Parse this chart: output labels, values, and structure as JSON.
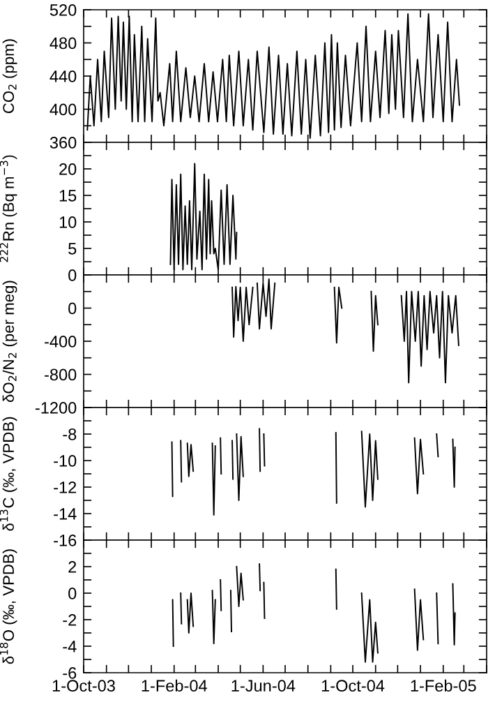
{
  "chart_data": [
    {
      "type": "line",
      "ylabel": "CO$_{2}$ (ppm)",
      "line_style": "solid",
      "tick_labels": "y",
      "xlim": [
        "2003-10-01",
        "2005-04-01"
      ],
      "xticks": [
        {
          "value": "2003-10-01",
          "label": null
        },
        {
          "value": "2003-11-01",
          "label": null
        },
        {
          "value": "2003-12-01",
          "label": null
        },
        {
          "value": "2004-01-01",
          "label": null
        },
        {
          "value": "2004-02-01",
          "label": null
        },
        {
          "value": "2004-03-01",
          "label": null
        },
        {
          "value": "2004-04-01",
          "label": null
        },
        {
          "value": "2004-05-01",
          "label": null
        },
        {
          "value": "2004-06-01",
          "label": null
        },
        {
          "value": "2004-07-01",
          "label": null
        },
        {
          "value": "2004-08-01",
          "label": null
        },
        {
          "value": "2004-09-01",
          "label": null
        },
        {
          "value": "2004-10-01",
          "label": null
        },
        {
          "value": "2004-11-01",
          "label": null
        },
        {
          "value": "2004-12-01",
          "label": null
        },
        {
          "value": "2005-01-01",
          "label": null
        },
        {
          "value": "2005-02-01",
          "label": null
        },
        {
          "value": "2005-03-01",
          "label": null
        },
        {
          "value": "2005-04-01",
          "label": null
        }
      ],
      "ylim": [
        360,
        520
      ],
      "yticks": [
        360,
        {
          "value": 380,
          "label": null
        },
        400,
        {
          "value": 420,
          "label": null
        },
        440,
        {
          "value": 460,
          "label": null
        },
        480,
        {
          "value": 500,
          "label": null
        },
        520
      ],
      "x": [
        "2003-10-06",
        "2003-10-10",
        "2003-10-15",
        "2003-10-20",
        "2003-10-25",
        "2003-10-29",
        "2003-11-04",
        "2003-11-08",
        "2003-11-13",
        "2003-11-17",
        "2003-11-21",
        "2003-11-24",
        "2003-11-28",
        "2003-12-02",
        "2003-12-06",
        "2003-12-09",
        "2003-12-14",
        "2003-12-19",
        "2003-12-23",
        "2003-12-27",
        "2004-01-02",
        "2004-01-07",
        "2004-01-10",
        "2004-01-13",
        "2004-01-18",
        "2004-01-26",
        "2004-01-30",
        "2004-02-04",
        "2004-02-10",
        "2004-02-17",
        "2004-02-23",
        "2004-02-29",
        "2004-03-06",
        "2004-03-13",
        "2004-03-19",
        "2004-03-25",
        "2004-03-31",
        "2004-04-07",
        "2004-04-12",
        "2004-04-16",
        "2004-04-22",
        "2004-04-29",
        "2004-05-05",
        "2004-05-12",
        "2004-05-18",
        "2004-05-24",
        "2004-06-02",
        "2004-06-09",
        "2004-06-15",
        "2004-06-22",
        "2004-06-28",
        "2004-07-04",
        "2004-07-10",
        "2004-07-17",
        "2004-07-23",
        "2004-07-29",
        "2004-08-04",
        "2004-08-11",
        "2004-08-18",
        "2004-08-24",
        "2004-08-29",
        "2004-09-02",
        "2004-09-06",
        "2004-09-10",
        "2004-09-15",
        "2004-09-21",
        "2004-09-28",
        "2004-10-07",
        "2004-10-13",
        "2004-10-19",
        "2004-10-25",
        "2004-11-01",
        "2004-11-07",
        "2004-11-14",
        "2004-11-19",
        "2004-11-23",
        "2004-11-28",
        "2004-12-02",
        "2004-12-09",
        "2004-12-15",
        "2004-12-21",
        "2004-12-28",
        "2005-01-05",
        "2005-01-12",
        "2005-01-18",
        "2005-01-25",
        "2005-02-01",
        "2005-02-07",
        "2005-02-13",
        "2005-02-19",
        "2005-02-23"
      ],
      "series": [
        {
          "color": "#000000",
          "values": [
            375,
            440,
            380,
            460,
            385,
            470,
            390,
            510,
            400,
            512,
            410,
            505,
            400,
            512,
            385,
            490,
            385,
            500,
            385,
            485,
            385,
            510,
            410,
            420,
            380,
            455,
            385,
            470,
            385,
            450,
            390,
            440,
            385,
            455,
            385,
            445,
            385,
            460,
            385,
            465,
            380,
            470,
            380,
            460,
            375,
            470,
            372,
            475,
            370,
            465,
            370,
            455,
            368,
            470,
            370,
            460,
            365,
            465,
            368,
            480,
            372,
            490,
            375,
            480,
            378,
            465,
            380,
            480,
            385,
            500,
            385,
            470,
            390,
            495,
            395,
            490,
            400,
            495,
            390,
            515,
            385,
            460,
            385,
            515,
            390,
            490,
            385,
            505,
            385,
            460,
            405
          ]
        }
      ]
    },
    {
      "type": "line",
      "ylabel": "$^{222}$Rn (Bq m$^{−3}$)",
      "line_style": "solid",
      "tick_labels": "y",
      "xlim": [
        "2003-10-01",
        "2005-04-01"
      ],
      "xticks": [
        {
          "value": "2003-10-01",
          "label": null
        },
        {
          "value": "2003-11-01",
          "label": null
        },
        {
          "value": "2003-12-01",
          "label": null
        },
        {
          "value": "2004-01-01",
          "label": null
        },
        {
          "value": "2004-02-01",
          "label": null
        },
        {
          "value": "2004-03-01",
          "label": null
        },
        {
          "value": "2004-04-01",
          "label": null
        },
        {
          "value": "2004-05-01",
          "label": null
        },
        {
          "value": "2004-06-01",
          "label": null
        },
        {
          "value": "2004-07-01",
          "label": null
        },
        {
          "value": "2004-08-01",
          "label": null
        },
        {
          "value": "2004-09-01",
          "label": null
        },
        {
          "value": "2004-10-01",
          "label": null
        },
        {
          "value": "2004-11-01",
          "label": null
        },
        {
          "value": "2004-12-01",
          "label": null
        },
        {
          "value": "2005-01-01",
          "label": null
        },
        {
          "value": "2005-02-01",
          "label": null
        },
        {
          "value": "2005-03-01",
          "label": null
        },
        {
          "value": "2005-04-01",
          "label": null
        }
      ],
      "ylim": [
        0,
        25
      ],
      "yticks": [
        0,
        {
          "value": 2.5,
          "label": null
        },
        5,
        {
          "value": 7.5,
          "label": null
        },
        10,
        {
          "value": 12.5,
          "label": null
        },
        15,
        {
          "value": 17.5,
          "label": null
        },
        20,
        {
          "value": 22.5,
          "label": null
        },
        {
          "value": 25,
          "label": null
        }
      ],
      "x": [
        "2004-01-27",
        "2004-01-29",
        "2004-02-01",
        "2004-02-04",
        "2004-02-07",
        "2004-02-10",
        "2004-02-13",
        "2004-02-16",
        "2004-02-19",
        "2004-02-22",
        "2004-02-25",
        "2004-02-29",
        "2004-03-03",
        "2004-03-07",
        "2004-03-10",
        "2004-03-13",
        "2004-03-16",
        "2004-03-19",
        "2004-03-21",
        "2004-03-23",
        "2004-03-26",
        "2004-03-28",
        "2004-04-01",
        "2004-04-05",
        "2004-04-09",
        "2004-04-13",
        "2004-04-17",
        "2004-04-21",
        "2004-04-25",
        "2004-04-26"
      ],
      "series": [
        {
          "color": "#000000",
          "values": [
            2,
            18,
            1,
            17,
            2,
            19,
            1,
            13,
            2,
            14,
            1,
            21,
            3,
            12,
            1,
            19,
            3,
            18,
            4,
            14,
            4,
            5,
            1,
            16,
            2,
            17,
            2,
            15,
            3,
            8
          ]
        }
      ]
    },
    {
      "type": "line",
      "ylabel": "δO$_{2}$/N$_{2}$ (per meg)",
      "line_style": "solid",
      "tick_labels": "y",
      "xlim": [
        "2003-10-01",
        "2005-04-01"
      ],
      "xticks": [
        {
          "value": "2003-10-01",
          "label": null
        },
        {
          "value": "2003-11-01",
          "label": null
        },
        {
          "value": "2003-12-01",
          "label": null
        },
        {
          "value": "2004-01-01",
          "label": null
        },
        {
          "value": "2004-02-01",
          "label": null
        },
        {
          "value": "2004-03-01",
          "label": null
        },
        {
          "value": "2004-04-01",
          "label": null
        },
        {
          "value": "2004-05-01",
          "label": null
        },
        {
          "value": "2004-06-01",
          "label": null
        },
        {
          "value": "2004-07-01",
          "label": null
        },
        {
          "value": "2004-08-01",
          "label": null
        },
        {
          "value": "2004-09-01",
          "label": null
        },
        {
          "value": "2004-10-01",
          "label": null
        },
        {
          "value": "2004-11-01",
          "label": null
        },
        {
          "value": "2004-12-01",
          "label": null
        },
        {
          "value": "2005-01-01",
          "label": null
        },
        {
          "value": "2005-02-01",
          "label": null
        },
        {
          "value": "2005-03-01",
          "label": null
        },
        {
          "value": "2005-04-01",
          "label": null
        }
      ],
      "ylim": [
        -1200,
        400
      ],
      "yticks": [
        -1200,
        {
          "value": -1000,
          "label": null
        },
        -800,
        {
          "value": -600,
          "label": null
        },
        -400,
        {
          "value": -200,
          "label": null
        },
        0,
        {
          "value": 200,
          "label": null
        },
        {
          "value": 400,
          "label": null
        }
      ],
      "x": [
        "2004-04-20",
        "2004-04-22",
        "2004-04-25",
        "2004-04-28",
        "2004-05-01",
        "2004-05-05",
        "2004-05-09",
        "2004-05-13",
        "2004-05-18",
        "2004-05-19",
        "2004-05-24",
        "2004-05-27",
        "2004-06-01",
        "2004-06-05",
        "2004-06-09",
        "2004-06-12",
        "2004-06-17",
        "2004-06-18",
        "2004-09-06",
        "2004-09-09",
        "2004-09-12",
        "2004-09-16",
        "2004-09-17",
        "2004-10-26",
        "2004-10-29",
        "2004-11-01",
        "2004-11-04",
        "2004-11-05",
        "2004-12-06",
        "2004-12-10",
        "2004-12-13",
        "2004-12-16",
        "2004-12-20",
        "2004-12-25",
        "2004-12-29",
        "2005-01-02",
        "2005-01-06",
        "2005-01-10",
        "2005-01-14",
        "2005-01-19",
        "2005-01-23",
        "2005-01-27",
        "2005-01-31",
        "2005-02-04",
        "2005-02-08",
        "2005-02-13",
        "2005-02-18",
        "2005-02-22"
      ],
      "series": [
        {
          "color": "#000000",
          "values": [
            250,
            -350,
            260,
            -150,
            250,
            -400,
            250,
            -200,
            250,
            null,
            300,
            -250,
            300,
            -100,
            350,
            -250,
            300,
            null,
            250,
            -420,
            250,
            0,
            null,
            200,
            -520,
            150,
            -200,
            null,
            150,
            -400,
            200,
            -900,
            200,
            -400,
            200,
            -700,
            150,
            -500,
            200,
            -300,
            150,
            -600,
            200,
            -900,
            150,
            -300,
            150,
            -450
          ]
        }
      ]
    },
    {
      "type": "line",
      "ylabel": "δ$^{13}$C (‰, VPDB)",
      "line_style": "solid",
      "tick_labels": "y",
      "xlim": [
        "2003-10-01",
        "2005-04-01"
      ],
      "xticks": [
        {
          "value": "2003-10-01",
          "label": null
        },
        {
          "value": "2003-11-01",
          "label": null
        },
        {
          "value": "2003-12-01",
          "label": null
        },
        {
          "value": "2004-01-01",
          "label": null
        },
        {
          "value": "2004-02-01",
          "label": null
        },
        {
          "value": "2004-03-01",
          "label": null
        },
        {
          "value": "2004-04-01",
          "label": null
        },
        {
          "value": "2004-05-01",
          "label": null
        },
        {
          "value": "2004-06-01",
          "label": null
        },
        {
          "value": "2004-07-01",
          "label": null
        },
        {
          "value": "2004-08-01",
          "label": null
        },
        {
          "value": "2004-09-01",
          "label": null
        },
        {
          "value": "2004-10-01",
          "label": null
        },
        {
          "value": "2004-11-01",
          "label": null
        },
        {
          "value": "2004-12-01",
          "label": null
        },
        {
          "value": "2005-01-01",
          "label": null
        },
        {
          "value": "2005-02-01",
          "label": null
        },
        {
          "value": "2005-03-01",
          "label": null
        },
        {
          "value": "2005-04-01",
          "label": null
        }
      ],
      "ylim": [
        -16,
        -6
      ],
      "yticks": [
        -16,
        {
          "value": -15,
          "label": null
        },
        -14,
        {
          "value": -13,
          "label": null
        },
        -12,
        {
          "value": -11,
          "label": null
        },
        -10,
        {
          "value": -9,
          "label": null
        },
        -8,
        {
          "value": -7,
          "label": null
        },
        {
          "value": -6,
          "label": null
        }
      ],
      "x": [
        "2004-01-29",
        "2004-01-30",
        "2004-02-01",
        "2004-02-10",
        "2004-02-11",
        "2004-02-14",
        "2004-02-19",
        "2004-02-21",
        "2004-02-24",
        "2004-02-27",
        "2004-03-05",
        "2004-03-24",
        "2004-03-26",
        "2004-03-28",
        "2004-04-01",
        "2004-04-04",
        "2004-04-05",
        "2004-04-10",
        "2004-04-20",
        "2004-04-21",
        "2004-04-23",
        "2004-04-26",
        "2004-04-29",
        "2004-05-02",
        "2004-05-05",
        "2004-05-20",
        "2004-05-27",
        "2004-05-28",
        "2004-05-31",
        "2004-06-02",
        "2004-06-03",
        "2004-06-06",
        "2004-09-08",
        "2004-09-09",
        "2004-09-12",
        "2004-10-13",
        "2004-10-18",
        "2004-10-24",
        "2004-10-28",
        "2004-11-01",
        "2004-11-04",
        "2004-11-10",
        "2004-12-24",
        "2004-12-28",
        "2005-01-01",
        "2005-01-05",
        "2005-01-10",
        "2005-01-23",
        "2005-01-25",
        "2005-01-30",
        "2005-02-14",
        "2005-02-16",
        "2005-02-17"
      ],
      "series": [
        {
          "color": "#000000",
          "values": [
            -8.6,
            -12.7,
            null,
            -8.5,
            -11.6,
            null,
            -8.7,
            -11.2,
            -8.8,
            -10.8,
            null,
            -8.7,
            -14.1,
            -8.9,
            null,
            -8.3,
            -11,
            null,
            -8.5,
            -11.4,
            null,
            -8,
            -13,
            -8.2,
            -11.2,
            null,
            -7.6,
            -10.8,
            null,
            -8,
            -10.4,
            null,
            -7.9,
            -13.2,
            null,
            -7.8,
            -13.5,
            -8,
            -13,
            -8.5,
            -11.4,
            null,
            -8.3,
            -12.5,
            -8.4,
            -11,
            null,
            -8,
            -9.7,
            null,
            -8.4,
            -12,
            -9
          ]
        }
      ]
    },
    {
      "type": "line",
      "ylabel": "δ$^{18}$O (‰, VPDB)",
      "line_style": "solid",
      "xlim": [
        "2003-10-01",
        "2005-04-01"
      ],
      "xticks": [
        {
          "value": "2003-10-01",
          "label": "1-Oct-03"
        },
        {
          "value": "2003-11-01",
          "label": null
        },
        {
          "value": "2003-12-01",
          "label": null
        },
        {
          "value": "2004-01-01",
          "label": null
        },
        {
          "value": "2004-02-01",
          "label": "1-Feb-04"
        },
        {
          "value": "2004-03-01",
          "label": null
        },
        {
          "value": "2004-04-01",
          "label": null
        },
        {
          "value": "2004-05-01",
          "label": null
        },
        {
          "value": "2004-06-01",
          "label": "1-Jun-04"
        },
        {
          "value": "2004-07-01",
          "label": null
        },
        {
          "value": "2004-08-01",
          "label": null
        },
        {
          "value": "2004-09-01",
          "label": null
        },
        {
          "value": "2004-10-01",
          "label": "1-Oct-04"
        },
        {
          "value": "2004-11-01",
          "label": null
        },
        {
          "value": "2004-12-01",
          "label": null
        },
        {
          "value": "2005-01-01",
          "label": null
        },
        {
          "value": "2005-02-01",
          "label": "1-Feb-05"
        },
        {
          "value": "2005-03-01",
          "label": null
        },
        {
          "value": "2005-04-01",
          "label": null
        }
      ],
      "ylim": [
        -6,
        4
      ],
      "yticks": [
        -6,
        {
          "value": -5,
          "label": null
        },
        -4,
        {
          "value": -3,
          "label": null
        },
        -2,
        {
          "value": -1,
          "label": null
        },
        0,
        {
          "value": 1,
          "label": null
        },
        2,
        {
          "value": 3,
          "label": null
        },
        {
          "value": 4,
          "label": null
        }
      ],
      "x": [
        "2004-01-30",
        "2004-01-31",
        "2004-02-03",
        "2004-02-10",
        "2004-02-11",
        "2004-02-14",
        "2004-02-19",
        "2004-02-21",
        "2004-02-24",
        "2004-02-27",
        "2004-03-05",
        "2004-03-24",
        "2004-03-26",
        "2004-03-28",
        "2004-04-01",
        "2004-04-04",
        "2004-04-05",
        "2004-04-10",
        "2004-04-18",
        "2004-04-19",
        "2004-04-23",
        "2004-04-26",
        "2004-04-29",
        "2004-05-02",
        "2004-05-05",
        "2004-05-20",
        "2004-05-27",
        "2004-05-28",
        "2004-05-31",
        "2004-06-02",
        "2004-06-03",
        "2004-06-06",
        "2004-09-08",
        "2004-09-09",
        "2004-09-12",
        "2004-10-13",
        "2004-10-18",
        "2004-10-24",
        "2004-10-28",
        "2004-11-01",
        "2004-11-04",
        "2004-11-10",
        "2004-12-24",
        "2004-12-28",
        "2005-01-01",
        "2005-01-05",
        "2005-01-10",
        "2005-01-23",
        "2005-01-25",
        "2005-01-30",
        "2005-02-14",
        "2005-02-16",
        "2005-02-17"
      ],
      "series": [
        {
          "color": "#000000",
          "values": [
            -0.5,
            -4,
            null,
            0,
            -2.3,
            null,
            -0.5,
            -3,
            0,
            -2.5,
            null,
            0.2,
            -3.8,
            -0.5,
            null,
            1,
            -1.3,
            null,
            0.2,
            -2.9,
            null,
            2,
            -1,
            1.5,
            -0.5,
            null,
            2.2,
            0.2,
            null,
            0.8,
            -1.9,
            null,
            1.8,
            -1.2,
            null,
            0,
            -5.2,
            -0.5,
            -5.2,
            -2.2,
            -4.5,
            null,
            0.3,
            -4.3,
            -0.5,
            -3.5,
            null,
            0,
            -3.8,
            null,
            0.7,
            -3.9,
            -1.5
          ]
        }
      ]
    }
  ]
}
